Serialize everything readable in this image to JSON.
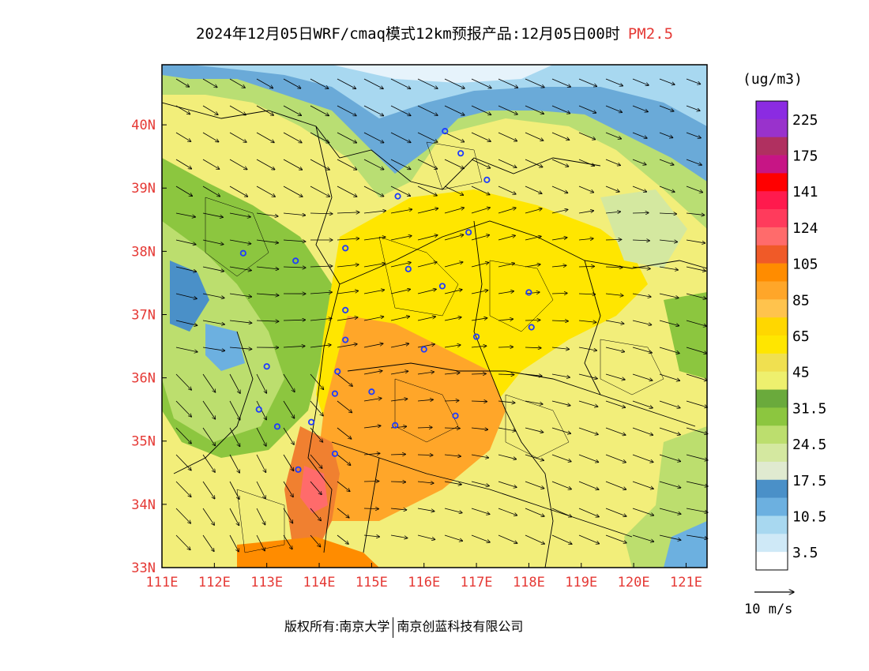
{
  "title": {
    "text": "2024年12月05日WRF/cmaq模式12km预报产品:12月05日00时",
    "variable": "PM2.5"
  },
  "map": {
    "lon_labels": [
      "111E",
      "112E",
      "113E",
      "114E",
      "115E",
      "116E",
      "117E",
      "118E",
      "119E",
      "120E",
      "121E"
    ],
    "lat_labels": [
      "33N",
      "34N",
      "35N",
      "36N",
      "37N",
      "38N",
      "39N",
      "40N"
    ],
    "lon_range": [
      111,
      121.4
    ],
    "lat_range": [
      33,
      40.95
    ]
  },
  "legend": {
    "unit": "(ug/m3)",
    "labels": [
      "225",
      "175",
      "141",
      "124",
      "105",
      "85",
      "65",
      "45",
      "31.5",
      "24.5",
      "17.5",
      "10.5",
      "3.5"
    ],
    "colors": [
      "#8b2be2",
      "#9932cc",
      "#b03060",
      "#c71585",
      "#ff0000",
      "#ff1a4d",
      "#ff3b5c",
      "#ff6b6b",
      "#f05a28",
      "#ff8c00",
      "#ffa629",
      "#ffc34d",
      "#ffd700",
      "#ffe600",
      "#f0e050",
      "#eef06e",
      "#6aaa3c",
      "#8cc63f",
      "#bcde6e",
      "#d4e8a0",
      "#e0ead0",
      "#4a90c8",
      "#6cb0e0",
      "#a8d8f0",
      "#cfe9f7",
      "#ffffff"
    ]
  },
  "vector_legend": {
    "label": "10 m/s"
  },
  "footer": {
    "left": "版权所有:南京大学",
    "right": "南京创蓝科技有限公司"
  },
  "cities": [
    {
      "lon": 116.4,
      "lat": 39.9
    },
    {
      "lon": 116.7,
      "lat": 39.55
    },
    {
      "lon": 117.2,
      "lat": 39.13
    },
    {
      "lon": 115.5,
      "lat": 38.87
    },
    {
      "lon": 116.85,
      "lat": 38.3
    },
    {
      "lon": 114.5,
      "lat": 38.05
    },
    {
      "lon": 112.55,
      "lat": 37.97
    },
    {
      "lon": 113.55,
      "lat": 37.85
    },
    {
      "lon": 115.7,
      "lat": 37.72
    },
    {
      "lon": 116.35,
      "lat": 37.45
    },
    {
      "lon": 118.0,
      "lat": 37.35
    },
    {
      "lon": 114.5,
      "lat": 37.07
    },
    {
      "lon": 114.5,
      "lat": 36.6
    },
    {
      "lon": 116.0,
      "lat": 36.45
    },
    {
      "lon": 117.0,
      "lat": 36.65
    },
    {
      "lon": 118.05,
      "lat": 36.8
    },
    {
      "lon": 113.0,
      "lat": 36.18
    },
    {
      "lon": 114.35,
      "lat": 36.1
    },
    {
      "lon": 114.3,
      "lat": 35.75
    },
    {
      "lon": 115.0,
      "lat": 35.78
    },
    {
      "lon": 112.85,
      "lat": 35.5
    },
    {
      "lon": 113.2,
      "lat": 35.23
    },
    {
      "lon": 113.85,
      "lat": 35.3
    },
    {
      "lon": 115.45,
      "lat": 35.25
    },
    {
      "lon": 116.6,
      "lat": 35.4
    },
    {
      "lon": 114.3,
      "lat": 34.8
    },
    {
      "lon": 113.6,
      "lat": 34.55
    }
  ]
}
